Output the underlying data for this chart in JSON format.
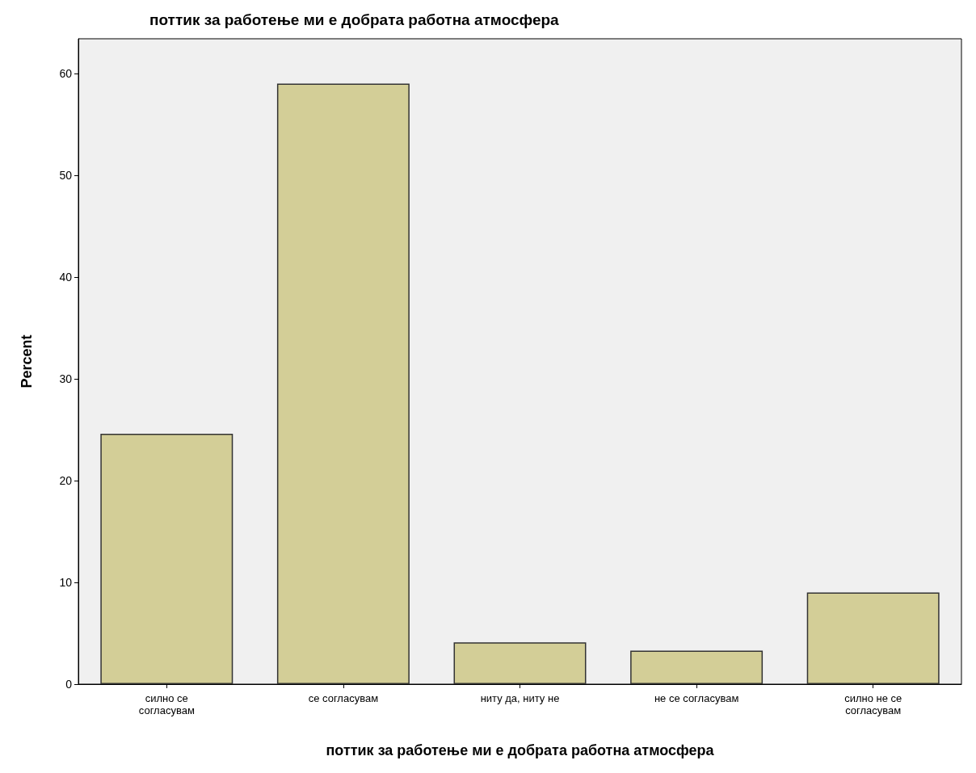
{
  "chart_data": {
    "type": "bar",
    "title": "поттик за работење ми е добрата работна атмосфера",
    "xlabel": "поттик за работење ми е добрата работна атмосфера",
    "ylabel": "Percent",
    "categories": [
      "силно се согласувам",
      "се согласувам",
      "ниту да, ниту не",
      "не се согласувам",
      "силно не се согласувам"
    ],
    "values": [
      24.6,
      59.0,
      4.1,
      3.3,
      9.0
    ],
    "color": "#d3ce97",
    "ylim": [
      0,
      63.4
    ],
    "yticks": [
      0,
      10,
      20,
      30,
      40,
      50,
      60
    ],
    "grid": false
  }
}
